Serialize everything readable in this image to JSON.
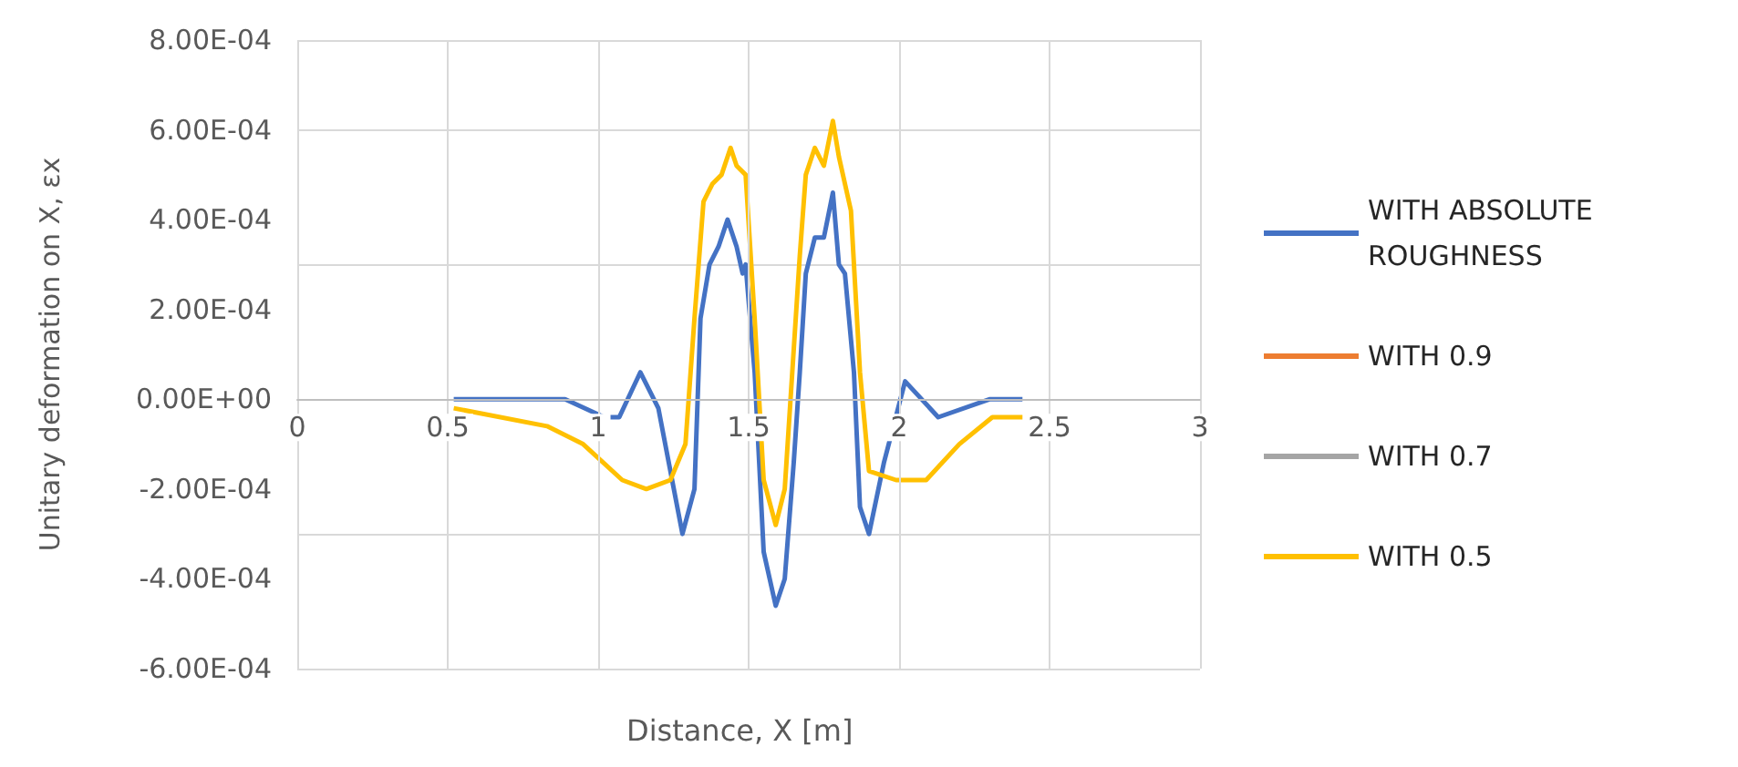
{
  "chart_data": {
    "type": "line",
    "xlabel": "Distance, X [m]",
    "ylabel": "Unitary deformation on X, εx",
    "xlim": [
      0,
      3
    ],
    "xticks": [
      0,
      0.5,
      1,
      1.5,
      2,
      2.5,
      3
    ],
    "ylim": [
      -0.0006,
      0.0008
    ],
    "yticks": [
      {
        "value": -0.0006,
        "label": "-6.00E-04"
      },
      {
        "value": -0.0004,
        "label": "-4.00E-04"
      },
      {
        "value": -0.0002,
        "label": "-2.00E-04"
      },
      {
        "value": 0,
        "label": "0.00E+00"
      },
      {
        "value": 0.0002,
        "label": "2.00E-04"
      },
      {
        "value": 0.0004,
        "label": "4.00E-04"
      },
      {
        "value": 0.0006,
        "label": "6.00E-04"
      },
      {
        "value": 0.0008,
        "label": "8.00E-04"
      }
    ],
    "grid": true,
    "legend": "right",
    "marker": "none",
    "line_style": "solid",
    "series": [
      {
        "name": "WITH ABSOLUTE ROUGHNESS",
        "color": "#4472c4",
        "x": [
          0.52,
          0.75,
          0.89,
          1.02,
          1.07,
          1.14,
          1.2,
          1.28,
          1.32,
          1.34,
          1.37,
          1.4,
          1.43,
          1.46,
          1.48,
          1.49,
          1.52,
          1.55,
          1.59,
          1.62,
          1.65,
          1.67,
          1.69,
          1.72,
          1.75,
          1.78,
          1.8,
          1.82,
          1.85,
          1.87,
          1.9,
          1.95,
          2.02,
          2.13,
          2.3,
          2.41
        ],
        "values": [
          0,
          0,
          0,
          -4e-05,
          -4e-05,
          6e-05,
          -2e-05,
          -0.0003,
          -0.0002,
          0.00018,
          0.0003,
          0.00034,
          0.0004,
          0.00034,
          0.00028,
          0.0003,
          6e-05,
          -0.00034,
          -0.00046,
          -0.0004,
          -0.00014,
          6e-05,
          0.00028,
          0.00036,
          0.00036,
          0.00046,
          0.0003,
          0.00028,
          6e-05,
          -0.00024,
          -0.0003,
          -0.00014,
          4e-05,
          -4e-05,
          0,
          0
        ]
      },
      {
        "name": "WITH 0.9",
        "color": "#ed7d31"
      },
      {
        "name": "WITH 0.7",
        "color": "#a5a5a5"
      },
      {
        "name": "WITH 0.5",
        "color": "#ffc000",
        "x": [
          0.52,
          0.83,
          0.95,
          1.08,
          1.16,
          1.24,
          1.29,
          1.32,
          1.35,
          1.38,
          1.41,
          1.44,
          1.46,
          1.49,
          1.52,
          1.55,
          1.59,
          1.62,
          1.67,
          1.69,
          1.72,
          1.75,
          1.78,
          1.8,
          1.84,
          1.87,
          1.9,
          1.99,
          2.09,
          2.2,
          2.31,
          2.41
        ],
        "values": [
          -2e-05,
          -6e-05,
          -0.0001,
          -0.00018,
          -0.0002,
          -0.00018,
          -0.0001,
          0.00018,
          0.00044,
          0.00048,
          0.0005,
          0.00056,
          0.00052,
          0.0005,
          0.00018,
          -0.00018,
          -0.00028,
          -0.0002,
          0.00032,
          0.0005,
          0.00056,
          0.00052,
          0.00062,
          0.00054,
          0.00042,
          6e-05,
          -0.00016,
          -0.00018,
          -0.00018,
          -0.0001,
          -4e-05,
          -4e-05
        ]
      }
    ]
  }
}
